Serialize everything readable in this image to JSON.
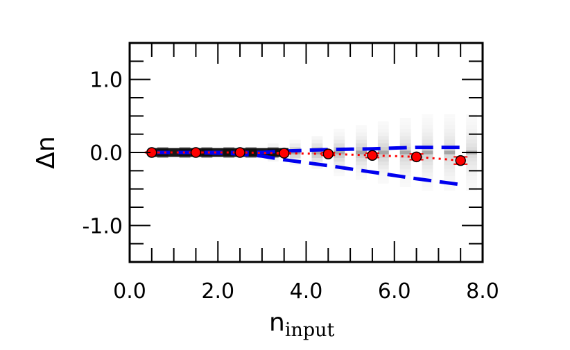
{
  "chart_data": {
    "type": "scatter",
    "xlabel": "n",
    "xlabel_sub": "input",
    "ylabel": "Δn",
    "xlim": [
      0.0,
      8.0
    ],
    "ylim": [
      -1.5,
      1.5
    ],
    "xticks": [
      0.0,
      2.0,
      4.0,
      6.0,
      8.0
    ],
    "xtick_labels": [
      "0.0",
      "2.0",
      "4.0",
      "6.0",
      "8.0"
    ],
    "yticks": [
      -1.0,
      0.0,
      1.0
    ],
    "ytick_labels": [
      "-1.0",
      "0.0",
      "1.0"
    ],
    "grid": false,
    "colors": {
      "median": "#ff0000",
      "median_edge": "#000000",
      "percentile": "#0000ee",
      "density": "#000000"
    },
    "median": {
      "x": [
        0.5,
        1.5,
        2.5,
        3.5,
        4.5,
        5.5,
        6.5,
        7.5
      ],
      "y": [
        0.0,
        0.0,
        0.0,
        -0.01,
        -0.02,
        -0.04,
        -0.06,
        -0.11
      ],
      "yerr": [
        0.005,
        0.005,
        0.005,
        0.01,
        0.02,
        0.03,
        0.04,
        0.05
      ]
    },
    "percentile_upper": {
      "x": [
        0.5,
        1.5,
        2.5,
        3.0,
        3.5,
        4.5,
        5.5,
        6.5,
        7.5
      ],
      "y": [
        0.0,
        0.0,
        0.0,
        0.0,
        0.02,
        0.04,
        0.05,
        0.07,
        0.07
      ]
    },
    "percentile_lower": {
      "x": [
        0.5,
        1.5,
        2.5,
        3.0,
        3.5,
        4.5,
        5.5,
        6.5,
        7.5
      ],
      "y": [
        0.0,
        0.0,
        -0.02,
        -0.05,
        -0.1,
        -0.18,
        -0.27,
        -0.36,
        -0.44
      ]
    },
    "density_columns": [
      {
        "x": 0.75,
        "core": 0.06,
        "spread": 0.05
      },
      {
        "x": 1.25,
        "core": 0.06,
        "spread": 0.05
      },
      {
        "x": 1.75,
        "core": 0.06,
        "spread": 0.06
      },
      {
        "x": 2.25,
        "core": 0.06,
        "spread": 0.08
      },
      {
        "x": 2.75,
        "core": 0.05,
        "spread": 0.1
      },
      {
        "x": 3.25,
        "core": 0.05,
        "spread": 0.14
      },
      {
        "x": 3.75,
        "core": 0.04,
        "spread": 0.2
      },
      {
        "x": 4.25,
        "core": 0.04,
        "spread": 0.28
      },
      {
        "x": 4.75,
        "core": 0.03,
        "spread": 0.36
      },
      {
        "x": 5.25,
        "core": 0.03,
        "spread": 0.44
      },
      {
        "x": 5.75,
        "core": 0.02,
        "spread": 0.52
      },
      {
        "x": 6.25,
        "core": 0.02,
        "spread": 0.6
      },
      {
        "x": 6.75,
        "core": 0.01,
        "spread": 0.68
      },
      {
        "x": 7.25,
        "core": 0.01,
        "spread": 0.76
      },
      {
        "x": 7.75,
        "core": 0.01,
        "spread": 0.8
      }
    ]
  }
}
